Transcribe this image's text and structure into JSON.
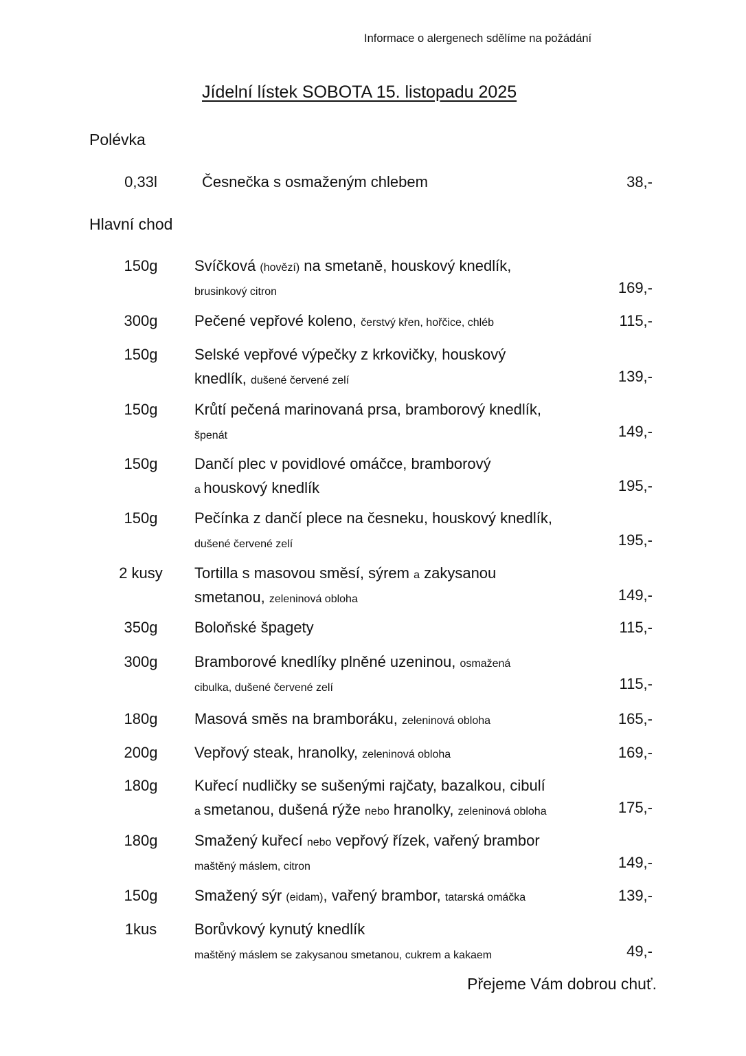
{
  "allergen_note": "Informace o alergenech sdělíme na požádání",
  "title": "Jídelní lístek  SOBOTA  15. listopadu 2025",
  "soup_section": {
    "heading": "Polévka",
    "items": [
      {
        "amount": "0,33l",
        "lines": [
          [
            {
              "text": "Česnečka s osmaženým chlebem"
            }
          ]
        ],
        "price": "38,-"
      }
    ]
  },
  "main_section": {
    "heading": "Hlavní chod",
    "items": [
      {
        "amount": "150g",
        "lines": [
          [
            {
              "text": "Svíčková "
            },
            {
              "text": "(hovězí)",
              "size": "small"
            },
            {
              "text": " na smetaně, houskový knedlík,"
            }
          ],
          [
            {
              "text": "brusinkový citron",
              "size": "small"
            }
          ]
        ],
        "price": "169,-"
      },
      {
        "amount": "300g",
        "lines": [
          [
            {
              "text": "Pečené vepřové koleno, "
            },
            {
              "text": "čerstvý křen, hořčice, chléb",
              "size": "small"
            }
          ]
        ],
        "price": "115,-"
      },
      {
        "amount": "150g",
        "lines": [
          [
            {
              "text": "Selské vepřové výpečky z krkovičky, houskový"
            }
          ],
          [
            {
              "text": "knedlík, "
            },
            {
              "text": "dušené červené zelí",
              "size": "small"
            }
          ]
        ],
        "price": "139,-"
      },
      {
        "amount": "150g",
        "lines": [
          [
            {
              "text": "Krůtí pečená marinovaná prsa, bramborový knedlík,"
            }
          ],
          [
            {
              "text": "špenát",
              "size": "small"
            }
          ]
        ],
        "price": "149,-"
      },
      {
        "amount": "150g",
        "lines": [
          [
            {
              "text": "Dančí plec v povidlové omáčce, bramborový"
            }
          ],
          [
            {
              "text": "a ",
              "size": "small"
            },
            {
              "text": "houskový knedlík"
            }
          ]
        ],
        "price": "195,-"
      },
      {
        "amount": "150g",
        "lines": [
          [
            {
              "text": "Pečínka z dančí plece na česneku, houskový knedlík,"
            }
          ],
          [
            {
              "text": "dušené červené zelí",
              "size": "small"
            }
          ]
        ],
        "price": "195,-"
      },
      {
        "amount": "2 kusy",
        "lines": [
          [
            {
              "text": "Tortilla s masovou směsí, sýrem "
            },
            {
              "text": "a",
              "size": "small"
            },
            {
              "text": " zakysanou"
            }
          ],
          [
            {
              "text": "smetanou, "
            },
            {
              "text": "zeleninová obloha",
              "size": "small"
            }
          ]
        ],
        "price": "149,-"
      },
      {
        "amount": "350g",
        "lines": [
          [
            {
              "text": "Boloňské špagety"
            }
          ]
        ],
        "price": "115,-"
      },
      {
        "amount": "300g",
        "lines": [
          [
            {
              "text": "Bramborové knedlíky plněné uzeninou, "
            },
            {
              "text": "osmažená",
              "size": "small"
            }
          ],
          [
            {
              "text": "cibulka, dušené červené zelí",
              "size": "small"
            }
          ]
        ],
        "price": "115,-"
      },
      {
        "amount": "180g",
        "lines": [
          [
            {
              "text": "Masová směs na bramboráku, "
            },
            {
              "text": "zeleninová obloha",
              "size": "small"
            }
          ]
        ],
        "price": "165,-"
      },
      {
        "amount": "200g",
        "lines": [
          [
            {
              "text": "Vepřový steak, hranolky, "
            },
            {
              "text": "zeleninová obloha",
              "size": "small"
            }
          ]
        ],
        "price": "169,-"
      },
      {
        "amount": "180g",
        "lines": [
          [
            {
              "text": "Kuřecí nudličky se sušenými rajčaty, bazalkou, cibulí"
            }
          ],
          [
            {
              "text": "a ",
              "size": "small"
            },
            {
              "text": "smetanou, dušená rýže "
            },
            {
              "text": "nebo",
              "size": "small"
            },
            {
              "text": " hranolky, "
            },
            {
              "text": "zeleninová obloha",
              "size": "small"
            }
          ]
        ],
        "price": "175,-"
      },
      {
        "amount": "180g",
        "lines": [
          [
            {
              "text": "Smažený kuřecí "
            },
            {
              "text": "nebo",
              "size": "small"
            },
            {
              "text": " vepřový řízek, vařený brambor"
            }
          ],
          [
            {
              "text": "maštěný máslem, citron",
              "size": "small"
            }
          ]
        ],
        "price": "149,-"
      },
      {
        "amount": "150g",
        "lines": [
          [
            {
              "text": "Smažený sýr "
            },
            {
              "text": "(eidam)",
              "size": "small"
            },
            {
              "text": ", vařený brambor, "
            },
            {
              "text": "tatarská omáčka",
              "size": "small"
            }
          ]
        ],
        "price": "139,-"
      },
      {
        "amount": "1kus",
        "lines": [
          [
            {
              "text": "Borůvkový kynutý knedlík"
            }
          ],
          [
            {
              "text": "maštěný máslem se zakysanou smetanou, cukrem a kakaem",
              "size": "small"
            }
          ]
        ],
        "price": "49,-"
      }
    ]
  },
  "closing": "Přejeme Vám dobrou chuť."
}
